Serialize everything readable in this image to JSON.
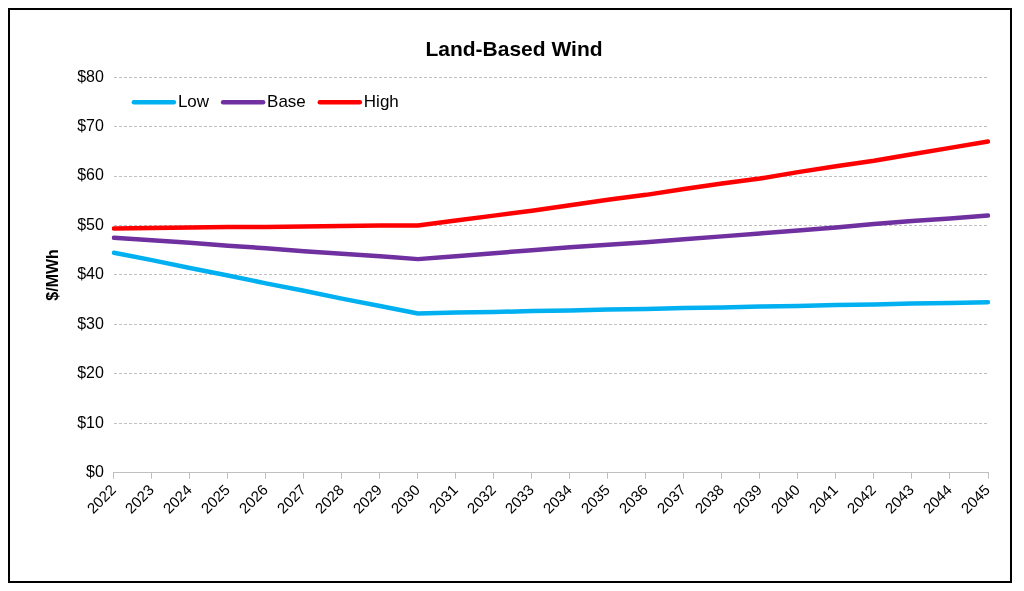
{
  "chart_data": {
    "type": "line",
    "title": "Land-Based Wind",
    "ylabel": "$/MWh",
    "categories": [
      "2022",
      "2023",
      "2024",
      "2025",
      "2026",
      "2027",
      "2028",
      "2029",
      "2030",
      "2031",
      "2032",
      "2033",
      "2034",
      "2035",
      "2036",
      "2037",
      "2038",
      "2039",
      "2040",
      "2041",
      "2042",
      "2043",
      "2044",
      "2045"
    ],
    "series": [
      {
        "name": "Low",
        "color": "#00b0f0",
        "values": [
          44.5,
          43.0,
          41.4,
          39.9,
          38.3,
          36.8,
          35.2,
          33.7,
          32.2,
          32.4,
          32.5,
          32.7,
          32.8,
          33.0,
          33.1,
          33.3,
          33.4,
          33.6,
          33.7,
          33.9,
          34.0,
          34.2,
          34.3,
          34.5
        ]
      },
      {
        "name": "Base",
        "color": "#7030a0",
        "values": [
          47.5,
          47.0,
          46.5,
          45.9,
          45.4,
          44.8,
          44.3,
          43.8,
          43.2,
          43.8,
          44.4,
          45.0,
          45.6,
          46.1,
          46.6,
          47.2,
          47.8,
          48.4,
          49.0,
          49.6,
          50.3,
          50.9,
          51.4,
          52.0
        ]
      },
      {
        "name": "High",
        "color": "#ff0000",
        "values": [
          49.4,
          49.5,
          49.6,
          49.7,
          49.7,
          49.8,
          49.9,
          50.0,
          50.0,
          51.0,
          52.0,
          53.0,
          54.1,
          55.2,
          56.2,
          57.4,
          58.5,
          59.5,
          60.8,
          62.0,
          63.1,
          64.4,
          65.7,
          67.0
        ]
      }
    ],
    "ylim": [
      0,
      80
    ],
    "yticks": [
      {
        "value": 0,
        "label": "$0"
      },
      {
        "value": 10,
        "label": "$10"
      },
      {
        "value": 20,
        "label": "$20"
      },
      {
        "value": 30,
        "label": "$30"
      },
      {
        "value": 40,
        "label": "$40"
      },
      {
        "value": 50,
        "label": "$50"
      },
      {
        "value": 60,
        "label": "$60"
      },
      {
        "value": 70,
        "label": "$70"
      },
      {
        "value": 80,
        "label": "$80"
      }
    ],
    "grid": "y",
    "legend": "top left",
    "marker": "none",
    "line_style": "solid"
  }
}
